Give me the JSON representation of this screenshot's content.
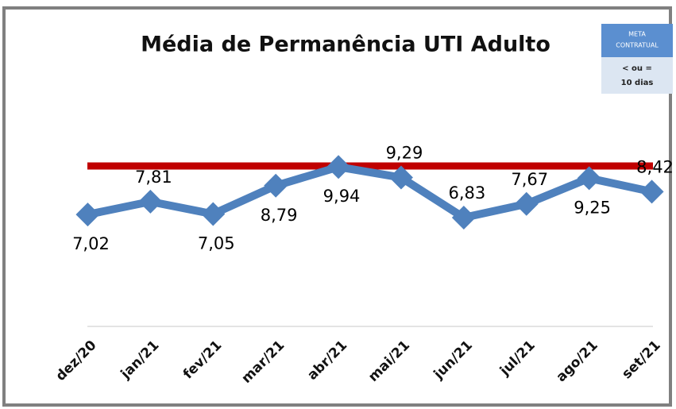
{
  "chart_data": {
    "type": "line",
    "title": "Média de Permanência UTI Adulto",
    "categories": [
      "dez/20",
      "jan/21",
      "fev/21",
      "mar/21",
      "abr/21",
      "mai/21",
      "jun/21",
      "jul/21",
      "ago/21",
      "set/21"
    ],
    "series": [
      {
        "color": "#4f81bd",
        "values": [
          7.02,
          7.81,
          7.05,
          8.79,
          9.94,
          9.29,
          6.83,
          7.67,
          9.25,
          8.42
        ],
        "value_labels": [
          "7,02",
          "7,81",
          "7,05",
          "8,79",
          "9,94",
          "9,29",
          "6,83",
          "7,67",
          "9,25",
          "8,42"
        ]
      }
    ],
    "reference_line": {
      "value": 10,
      "color": "#c00000"
    },
    "ylim": [
      0,
      12
    ],
    "meta": {
      "title": [
        "META",
        "CONTRATUAL"
      ],
      "text": [
        "< ou =",
        "10 dias"
      ]
    }
  }
}
